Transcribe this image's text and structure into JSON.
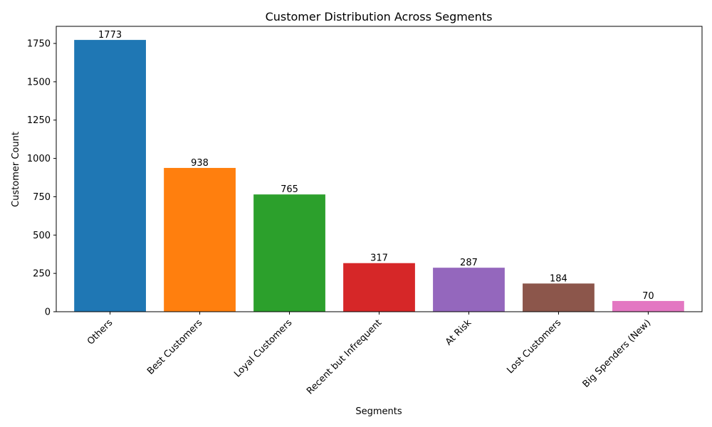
{
  "chart_data": {
    "type": "bar",
    "title": "Customer Distribution Across Segments",
    "xlabel": "Segments",
    "ylabel": "Customer Count",
    "categories": [
      "Others",
      "Best Customers",
      "Loyal Customers",
      "Recent but Infrequent",
      "At Risk",
      "Lost Customers",
      "Big Spenders (New)"
    ],
    "values": [
      1773,
      938,
      765,
      317,
      287,
      184,
      70
    ],
    "data_labels": [
      "1773",
      "938",
      "765",
      "317",
      "287",
      "184",
      "70"
    ],
    "colors": [
      "#1f77b4",
      "#ff7f0e",
      "#2ca02c",
      "#d62728",
      "#9467bd",
      "#8c564b",
      "#e377c2"
    ],
    "ylim": [
      0,
      1861.65
    ],
    "yticks": [
      0,
      250,
      500,
      750,
      1000,
      1250,
      1500,
      1750
    ],
    "ytick_labels": [
      "0",
      "250",
      "500",
      "750",
      "1000",
      "1250",
      "1500",
      "1750"
    ],
    "grid": false,
    "legend": false
  }
}
